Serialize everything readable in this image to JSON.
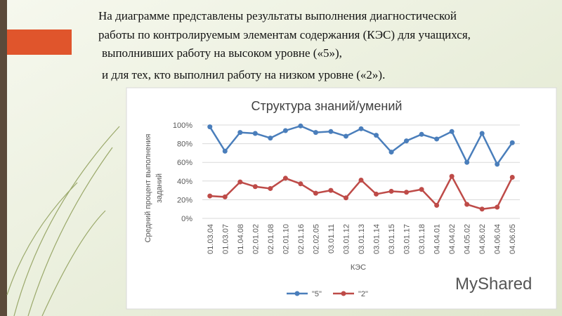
{
  "slide": {
    "lines": [
      "На диаграмме представлены результаты выполнения диагностической",
      "работы по контролируемым элементам содержания (КЭС) для учащихся,",
      "выполнивших работу на высоком уровне («5»),",
      "и для тех, кто выполнил работу на низком уровне («2»)."
    ],
    "watermark": "MyShared"
  },
  "chart_data": {
    "type": "line",
    "title": "Структура знаний/умений",
    "ylabel": [
      "Средний процент выполнения",
      "заданий"
    ],
    "xlabel": "КЭС",
    "categories": [
      "01.03.04",
      "01.03.07",
      "01.04.08",
      "02.01.02",
      "02.01.08",
      "02.01.10",
      "02.01.16",
      "02.02.05",
      "03.01.11",
      "03.01.12",
      "03.01.13",
      "03.01.14",
      "03.01.15",
      "03.01.17",
      "03.01.18",
      "04.04.01",
      "04.04.02",
      "04.05.02",
      "04.06.02",
      "04.06.04",
      "04.06.05"
    ],
    "series": [
      {
        "name": "\"5\"",
        "color": "#4a7ebb",
        "values": [
          98,
          72,
          92,
          91,
          86,
          94,
          99,
          92,
          93,
          88,
          96,
          89,
          71,
          83,
          90,
          85,
          93,
          60,
          91,
          58,
          81
        ]
      },
      {
        "name": "\"2\"",
        "color": "#be4b48",
        "values": [
          24,
          23,
          39,
          34,
          32,
          43,
          37,
          27,
          30,
          22,
          41,
          26,
          29,
          28,
          31,
          14,
          45,
          15,
          10,
          12,
          44
        ]
      }
    ],
    "ylim": [
      0,
      100
    ],
    "yticks": [
      {
        "value": 0,
        "label": "0%"
      },
      {
        "value": 20,
        "label": "20%"
      },
      {
        "value": 40,
        "label": "40%"
      },
      {
        "value": 60,
        "label": "60%"
      },
      {
        "value": 80,
        "label": "80%"
      },
      {
        "value": 100,
        "label": "100%"
      }
    ],
    "grid": true,
    "legend": "bottom"
  }
}
